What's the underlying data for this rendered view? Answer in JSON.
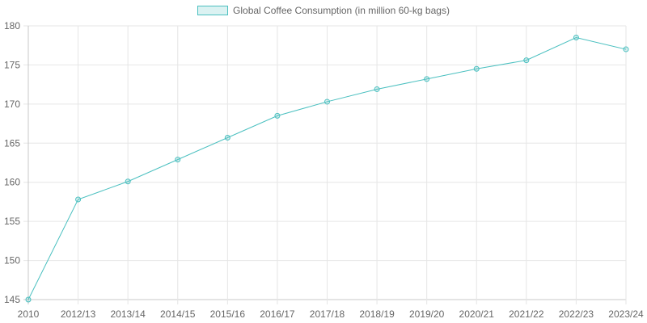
{
  "chart_data": {
    "type": "line",
    "title": "",
    "legend": [
      "Global Coffee Consumption (in million 60-kg bags)"
    ],
    "legend_position": "top",
    "categories": [
      "2010",
      "2012/13",
      "2013/14",
      "2014/15",
      "2015/16",
      "2016/17",
      "2017/18",
      "2018/19",
      "2019/20",
      "2020/21",
      "2021/22",
      "2022/23",
      "2023/24"
    ],
    "series": [
      {
        "name": "Global Coffee Consumption (in million 60-kg bags)",
        "values": [
          145.0,
          157.8,
          160.1,
          162.9,
          165.7,
          168.5,
          170.3,
          171.9,
          173.2,
          174.5,
          175.6,
          178.5,
          177.0
        ],
        "color": "#4bc0c0"
      }
    ],
    "xlabel": "",
    "ylabel": "",
    "ylim": [
      145,
      180
    ],
    "yticks": [
      145,
      150,
      155,
      160,
      165,
      170,
      175,
      180
    ],
    "grid": true
  },
  "legend": {
    "label": "Global Coffee Consumption (in million 60-kg bags)"
  }
}
